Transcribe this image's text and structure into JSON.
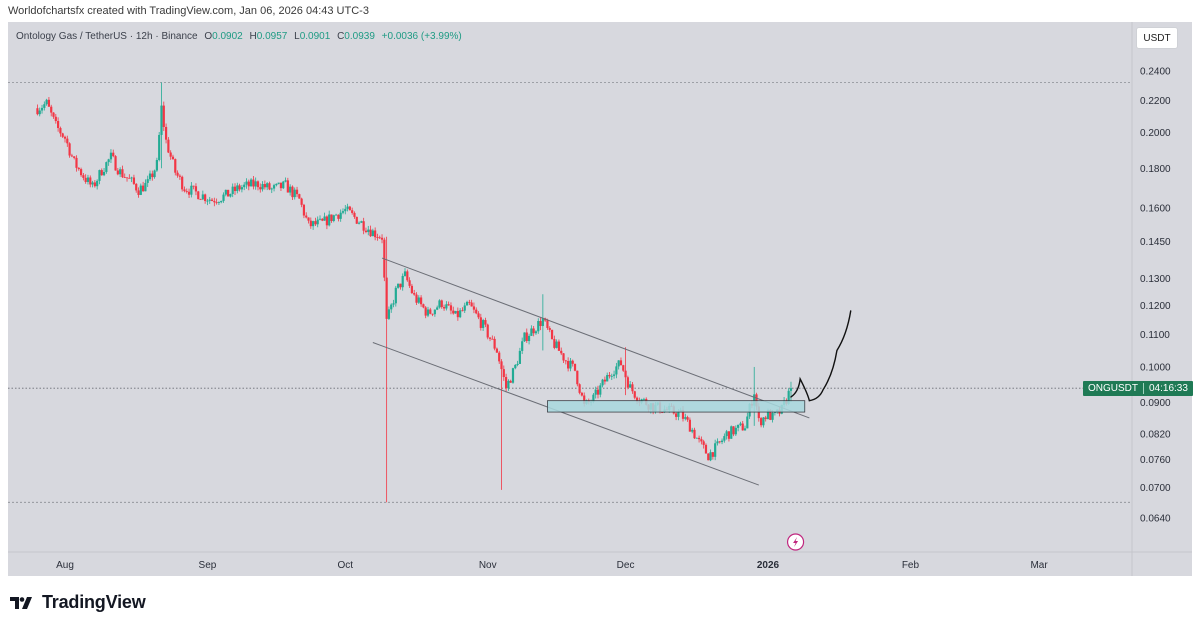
{
  "header": {
    "credit": "Worldofchartsfx created with TradingView.com, Jan 06, 2026 04:43 UTC-3"
  },
  "symbol_bar": {
    "pair": "Ontology Gas / TetherUS · 12h · Binance",
    "open_label": "O",
    "open": "0.0902",
    "high_label": "H",
    "high": "0.0957",
    "low_label": "L",
    "low": "0.0901",
    "close_label": "C",
    "close": "0.0939",
    "change": "+0.0036 (+3.99%)"
  },
  "currency_button": "USDT",
  "price_tag": {
    "symbol": "ONGUSDT",
    "countdown": "04:16:33"
  },
  "footer": {
    "logo_text": "TradingView"
  },
  "colors": {
    "background": "#d7d8de",
    "up": "#22ab94",
    "down": "#f23645",
    "channel": "#6b6e76",
    "zone_fill": "#a8d8de",
    "price_tag": "#1f7a55",
    "drawing": "#111111"
  },
  "chart_data": {
    "type": "candlestick",
    "title": "Ontology Gas / TetherUS · 12h · Binance",
    "y_ticks": [
      "0.2400",
      "0.2200",
      "0.2000",
      "0.1800",
      "0.1600",
      "0.1450",
      "0.1300",
      "0.1200",
      "0.1100",
      "0.1000",
      "0.0900",
      "0.0820",
      "0.0760",
      "0.0700",
      "0.0640"
    ],
    "x_ticks": [
      "Aug",
      "Sep",
      "Oct",
      "Nov",
      "Dec",
      "2026",
      "Feb",
      "Mar"
    ],
    "scale": "log",
    "ylim": [
      0.061,
      0.26
    ],
    "current_price": 0.0939,
    "close_path": [
      [
        "2025-07-26",
        0.215
      ],
      [
        "2025-07-28",
        0.218
      ],
      [
        "2025-07-30",
        0.204
      ],
      [
        "2025-08-01",
        0.197
      ],
      [
        "2025-08-03",
        0.183
      ],
      [
        "2025-08-05",
        0.176
      ],
      [
        "2025-08-07",
        0.17
      ],
      [
        "2025-08-09",
        0.179
      ],
      [
        "2025-08-11",
        0.186
      ],
      [
        "2025-08-13",
        0.178
      ],
      [
        "2025-08-15",
        0.174
      ],
      [
        "2025-08-17",
        0.169
      ],
      [
        "2025-08-19",
        0.172
      ],
      [
        "2025-08-21",
        0.182
      ],
      [
        "2025-08-22",
        0.215
      ],
      [
        "2025-08-23",
        0.195
      ],
      [
        "2025-08-25",
        0.178
      ],
      [
        "2025-08-27",
        0.17
      ],
      [
        "2025-08-30",
        0.167
      ],
      [
        "2025-09-02",
        0.164
      ],
      [
        "2025-09-05",
        0.166
      ],
      [
        "2025-09-08",
        0.17
      ],
      [
        "2025-09-12",
        0.172
      ],
      [
        "2025-09-15",
        0.169
      ],
      [
        "2025-09-18",
        0.171
      ],
      [
        "2025-09-21",
        0.164
      ],
      [
        "2025-09-23",
        0.152
      ],
      [
        "2025-09-26",
        0.153
      ],
      [
        "2025-09-29",
        0.157
      ],
      [
        "2025-10-01",
        0.159
      ],
      [
        "2025-10-04",
        0.154
      ],
      [
        "2025-10-07",
        0.149
      ],
      [
        "2025-10-09",
        0.147
      ],
      [
        "2025-10-10",
        0.114
      ],
      [
        "2025-10-12",
        0.125
      ],
      [
        "2025-10-14",
        0.131
      ],
      [
        "2025-10-16",
        0.123
      ],
      [
        "2025-10-19",
        0.117
      ],
      [
        "2025-10-22",
        0.121
      ],
      [
        "2025-10-25",
        0.116
      ],
      [
        "2025-10-28",
        0.12
      ],
      [
        "2025-10-31",
        0.113
      ],
      [
        "2025-11-03",
        0.105
      ],
      [
        "2025-11-05",
        0.094
      ],
      [
        "2025-11-07",
        0.1
      ],
      [
        "2025-11-09",
        0.109
      ],
      [
        "2025-11-11",
        0.112
      ],
      [
        "2025-11-13",
        0.115
      ],
      [
        "2025-11-15",
        0.108
      ],
      [
        "2025-11-18",
        0.102
      ],
      [
        "2025-11-20",
        0.099
      ],
      [
        "2025-11-22",
        0.089
      ],
      [
        "2025-11-24",
        0.091
      ],
      [
        "2025-11-26",
        0.095
      ],
      [
        "2025-11-28",
        0.099
      ],
      [
        "2025-11-30",
        0.101
      ],
      [
        "2025-12-02",
        0.094
      ],
      [
        "2025-12-04",
        0.091
      ],
      [
        "2025-12-07",
        0.089
      ],
      [
        "2025-12-10",
        0.088
      ],
      [
        "2025-12-13",
        0.087
      ],
      [
        "2025-12-15",
        0.084
      ],
      [
        "2025-12-17",
        0.08
      ],
      [
        "2025-12-19",
        0.077
      ],
      [
        "2025-12-21",
        0.079
      ],
      [
        "2025-12-23",
        0.082
      ],
      [
        "2025-12-25",
        0.083
      ],
      [
        "2025-12-27",
        0.084
      ],
      [
        "2025-12-29",
        0.093
      ],
      [
        "2025-12-30",
        0.085
      ],
      [
        "2026-01-01",
        0.087
      ],
      [
        "2026-01-02",
        0.086
      ],
      [
        "2026-01-04",
        0.088
      ],
      [
        "2026-01-06",
        0.0939
      ]
    ],
    "wicks": [
      [
        "2025-08-22",
        0.232,
        0.18
      ],
      [
        "2025-10-10",
        0.147,
        0.067
      ],
      [
        "2025-11-04",
        0.1,
        0.0695
      ],
      [
        "2025-11-13",
        0.124,
        0.105
      ],
      [
        "2025-12-01",
        0.106,
        0.092
      ],
      [
        "2025-12-29",
        0.1,
        0.084
      ],
      [
        "2026-01-06",
        0.0957,
        0.0901
      ]
    ],
    "channel_upper": [
      [
        "2025-10-09",
        0.138
      ],
      [
        "2026-01-10",
        0.086
      ]
    ],
    "channel_lower": [
      [
        "2025-10-07",
        0.1075
      ],
      [
        "2025-12-30",
        0.0705
      ]
    ],
    "zone": {
      "from": "2025-11-14",
      "to": "2026-01-09",
      "low": 0.0875,
      "high": 0.0905
    },
    "projection_drawing": [
      [
        "2026-01-06",
        0.0915
      ],
      [
        "2026-01-08",
        0.0965
      ],
      [
        "2026-01-10",
        0.0905
      ],
      [
        "2026-01-13",
        0.0935
      ],
      [
        "2026-01-16",
        0.105
      ],
      [
        "2026-01-19",
        0.118
      ]
    ],
    "grid": false
  }
}
